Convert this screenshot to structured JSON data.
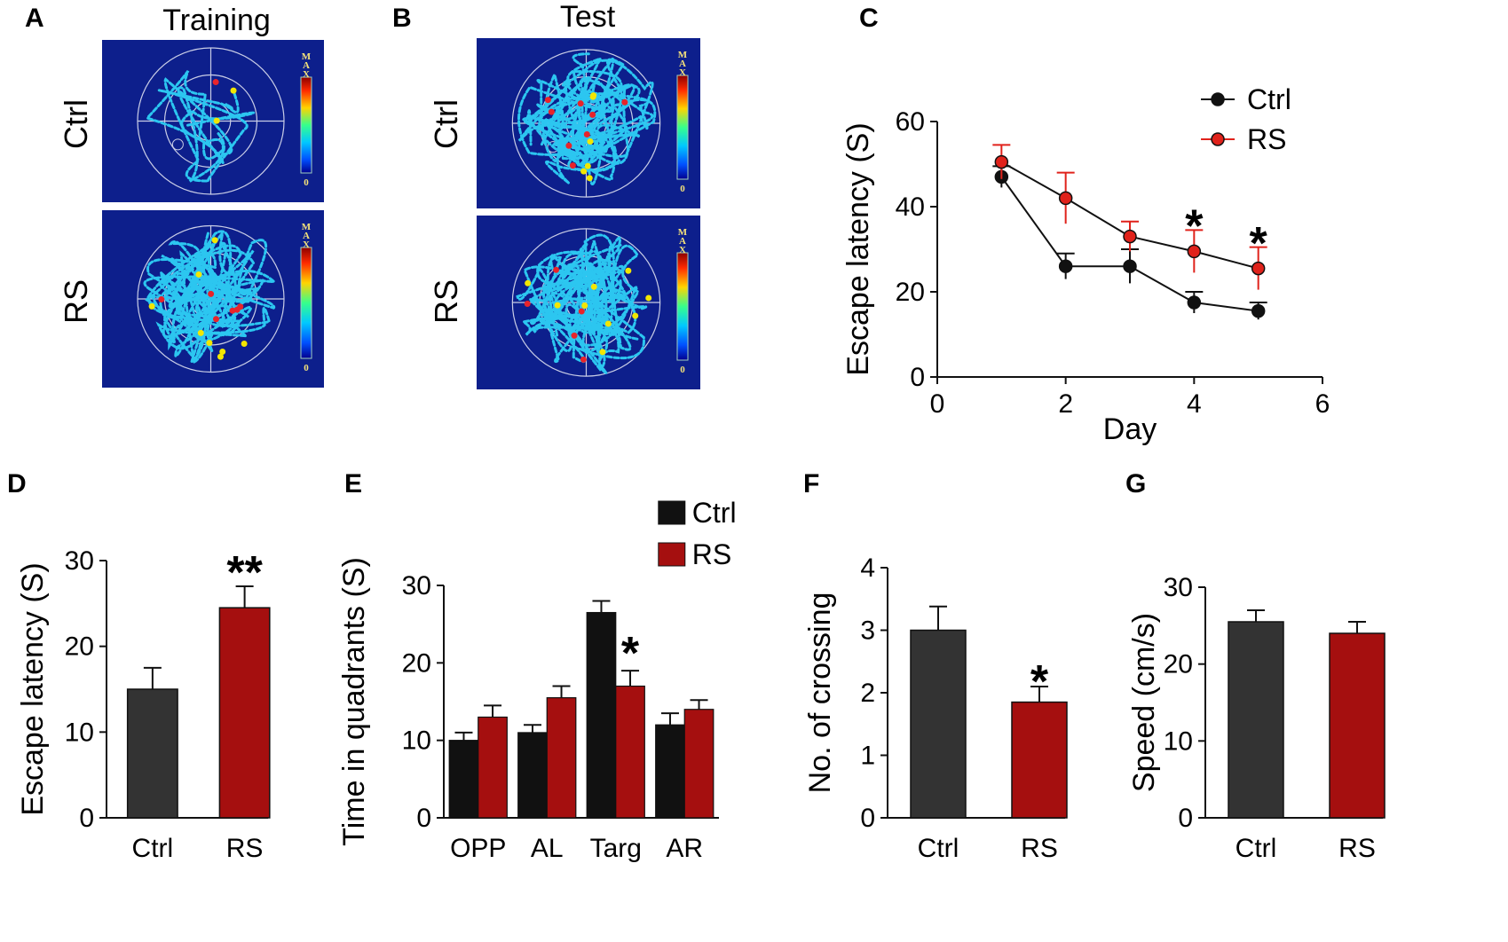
{
  "figure_panels": {
    "A": {
      "letter": "A",
      "title": "Training"
    },
    "B": {
      "letter": "B",
      "title": "Test"
    },
    "C": {
      "letter": "C"
    },
    "D": {
      "letter": "D"
    },
    "E": {
      "letter": "E"
    },
    "F": {
      "letter": "F"
    },
    "G": {
      "letter": "G"
    }
  },
  "heatmaps": {
    "rows": [
      "Ctrl",
      "RS"
    ],
    "scale_max": "MAX",
    "scale_min": "0",
    "colors": {
      "background": "#0d1f8c",
      "path_low": "#2cc6f0",
      "path_mid": "#f2e600",
      "path_high": "#e8242a",
      "grid": "#c9cde6"
    }
  },
  "colors": {
    "ctrl": "#333333",
    "ctrl_line": "#111111",
    "rs": "#a50f0f",
    "rs_marker": "#e0221b",
    "rs_err": "#e0221b",
    "axis": "#111111"
  },
  "chart_data": [
    {
      "id": "C",
      "type": "line",
      "xlabel": "Day",
      "ylabel": "Escape latency (S)",
      "xlim": [
        0,
        6
      ],
      "ylim": [
        0,
        60
      ],
      "xticks": [
        0,
        2,
        4,
        6
      ],
      "yticks": [
        0,
        20,
        40,
        60
      ],
      "legend": "top-right",
      "series": [
        {
          "name": "Ctrl",
          "x": [
            1,
            2,
            3,
            4,
            5
          ],
          "values": [
            47,
            26,
            26,
            17.5,
            15.5
          ],
          "err": [
            2.5,
            3,
            4,
            2.5,
            2
          ]
        },
        {
          "name": "RS",
          "x": [
            1,
            2,
            3,
            4,
            5
          ],
          "values": [
            50.5,
            42,
            33,
            29.5,
            25.5
          ],
          "err": [
            4,
            6,
            3.5,
            5,
            5
          ]
        }
      ],
      "significance": [
        {
          "x": 4,
          "y": 35.5,
          "label": "*"
        },
        {
          "x": 5,
          "y": 31.5,
          "label": "*"
        }
      ]
    },
    {
      "id": "D",
      "type": "bar",
      "ylabel": "Escape latency (S)",
      "ylim": [
        0,
        30
      ],
      "yticks": [
        0,
        10,
        20,
        30
      ],
      "categories": [
        "Ctrl",
        "RS"
      ],
      "values": [
        15,
        24.5
      ],
      "err": [
        2.5,
        2.5
      ],
      "significance": [
        {
          "index": 1,
          "label": "**"
        }
      ]
    },
    {
      "id": "E",
      "type": "bar",
      "ylabel": "Time in quadrants (S)",
      "ylim": [
        0,
        30
      ],
      "yticks": [
        0,
        10,
        20,
        30
      ],
      "legend": "top-right",
      "categories": [
        "OPP",
        "AL",
        "Targ",
        "AR"
      ],
      "series": [
        {
          "name": "Ctrl",
          "values": [
            10,
            11,
            26.5,
            12
          ],
          "err": [
            1,
            1,
            1.5,
            1.5
          ]
        },
        {
          "name": "RS",
          "values": [
            13,
            15.5,
            17,
            14
          ],
          "err": [
            1.5,
            1.5,
            2,
            1.2
          ]
        }
      ],
      "significance": [
        {
          "category": "Targ",
          "series": "RS",
          "label": "*"
        }
      ]
    },
    {
      "id": "F",
      "type": "bar",
      "ylabel": "No. of crossing",
      "ylim": [
        0,
        4
      ],
      "yticks": [
        0,
        1,
        2,
        3,
        4
      ],
      "categories": [
        "Ctrl",
        "RS"
      ],
      "values": [
        3,
        1.85
      ],
      "err": [
        0.38,
        0.25
      ],
      "significance": [
        {
          "index": 1,
          "label": "*"
        }
      ]
    },
    {
      "id": "G",
      "type": "bar",
      "ylabel": "Speed (cm/s)",
      "ylim": [
        0,
        30
      ],
      "yticks": [
        0,
        10,
        20,
        30
      ],
      "categories": [
        "Ctrl",
        "RS"
      ],
      "values": [
        25.5,
        24
      ],
      "err": [
        1.5,
        1.5
      ],
      "significance": []
    }
  ]
}
